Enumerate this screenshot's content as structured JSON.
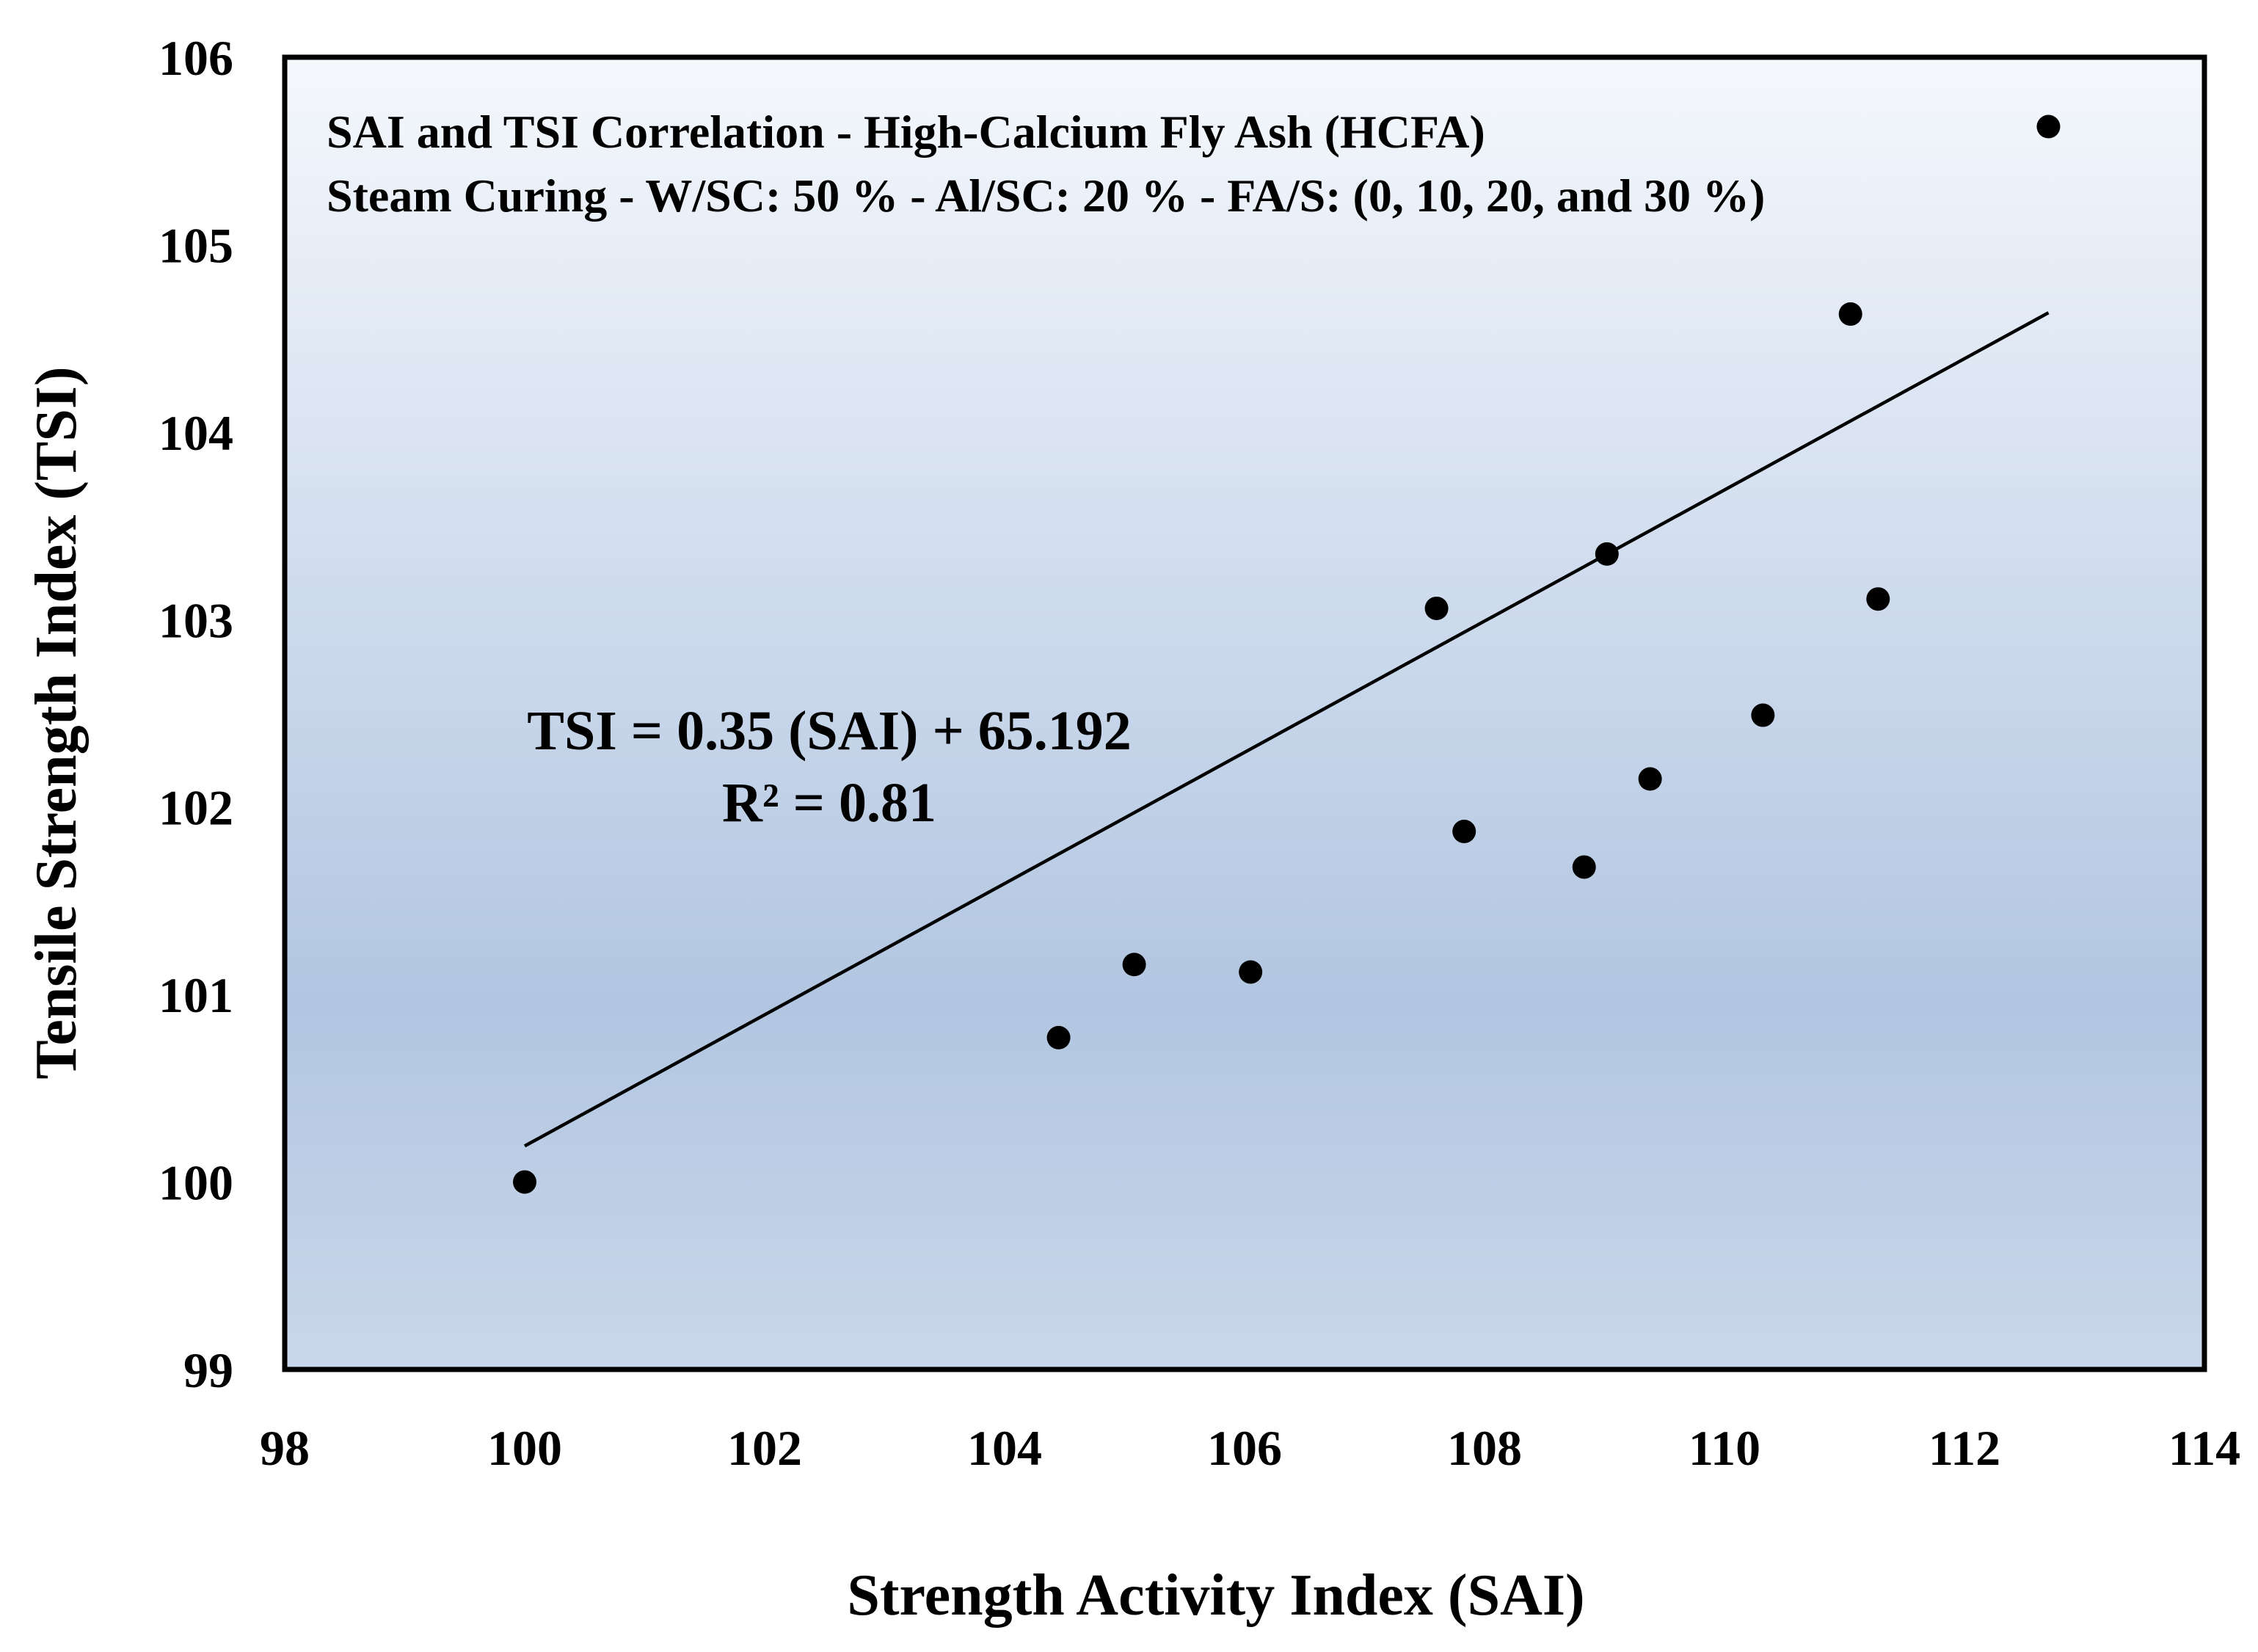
{
  "chart_data": {
    "type": "scatter",
    "title": "SAI and TSI Correlation - High-Calcium Fly Ash (HCFA)",
    "subtitle": "Steam Curing - W/SC: 50 % - Al/SC: 20 % - FA/S: (0, 10, 20, and 30 %)",
    "xlabel": "Strength Activity Index (SAI)",
    "ylabel": "Tensile Strength Index (TSI)",
    "xlim": [
      98,
      114
    ],
    "ylim": [
      99,
      106
    ],
    "xticks": [
      "98",
      "100",
      "102",
      "104",
      "106",
      "108",
      "110",
      "112",
      "114"
    ],
    "yticks": [
      "99",
      "100",
      "101",
      "102",
      "103",
      "104",
      "105",
      "106"
    ],
    "grid": false,
    "series": [
      {
        "name": "HCFA",
        "x": [
          100.0,
          104.45,
          105.08,
          106.05,
          107.6,
          107.83,
          108.83,
          109.02,
          109.38,
          110.32,
          111.05,
          111.28,
          112.7
        ],
        "y": [
          100.0,
          100.77,
          101.16,
          101.12,
          103.06,
          101.87,
          101.68,
          103.35,
          102.15,
          102.49,
          104.63,
          103.11,
          105.63
        ],
        "color": "#000000"
      }
    ],
    "trendline": {
      "type": "linear",
      "slope": 0.35,
      "intercept": 65.192,
      "x_range": [
        100,
        112.7
      ],
      "equation": "TSI = 0.35 (SAI) + 65.192",
      "r_squared": "R² = 0.81"
    },
    "colors": {
      "plot_gradient_top": "#f5f8fd",
      "plot_gradient_mid": "#b2c6e1",
      "plot_gradient_bottom": "#c9d7ea",
      "frame": "#000000",
      "marker": "#000000",
      "line": "#000000"
    }
  }
}
